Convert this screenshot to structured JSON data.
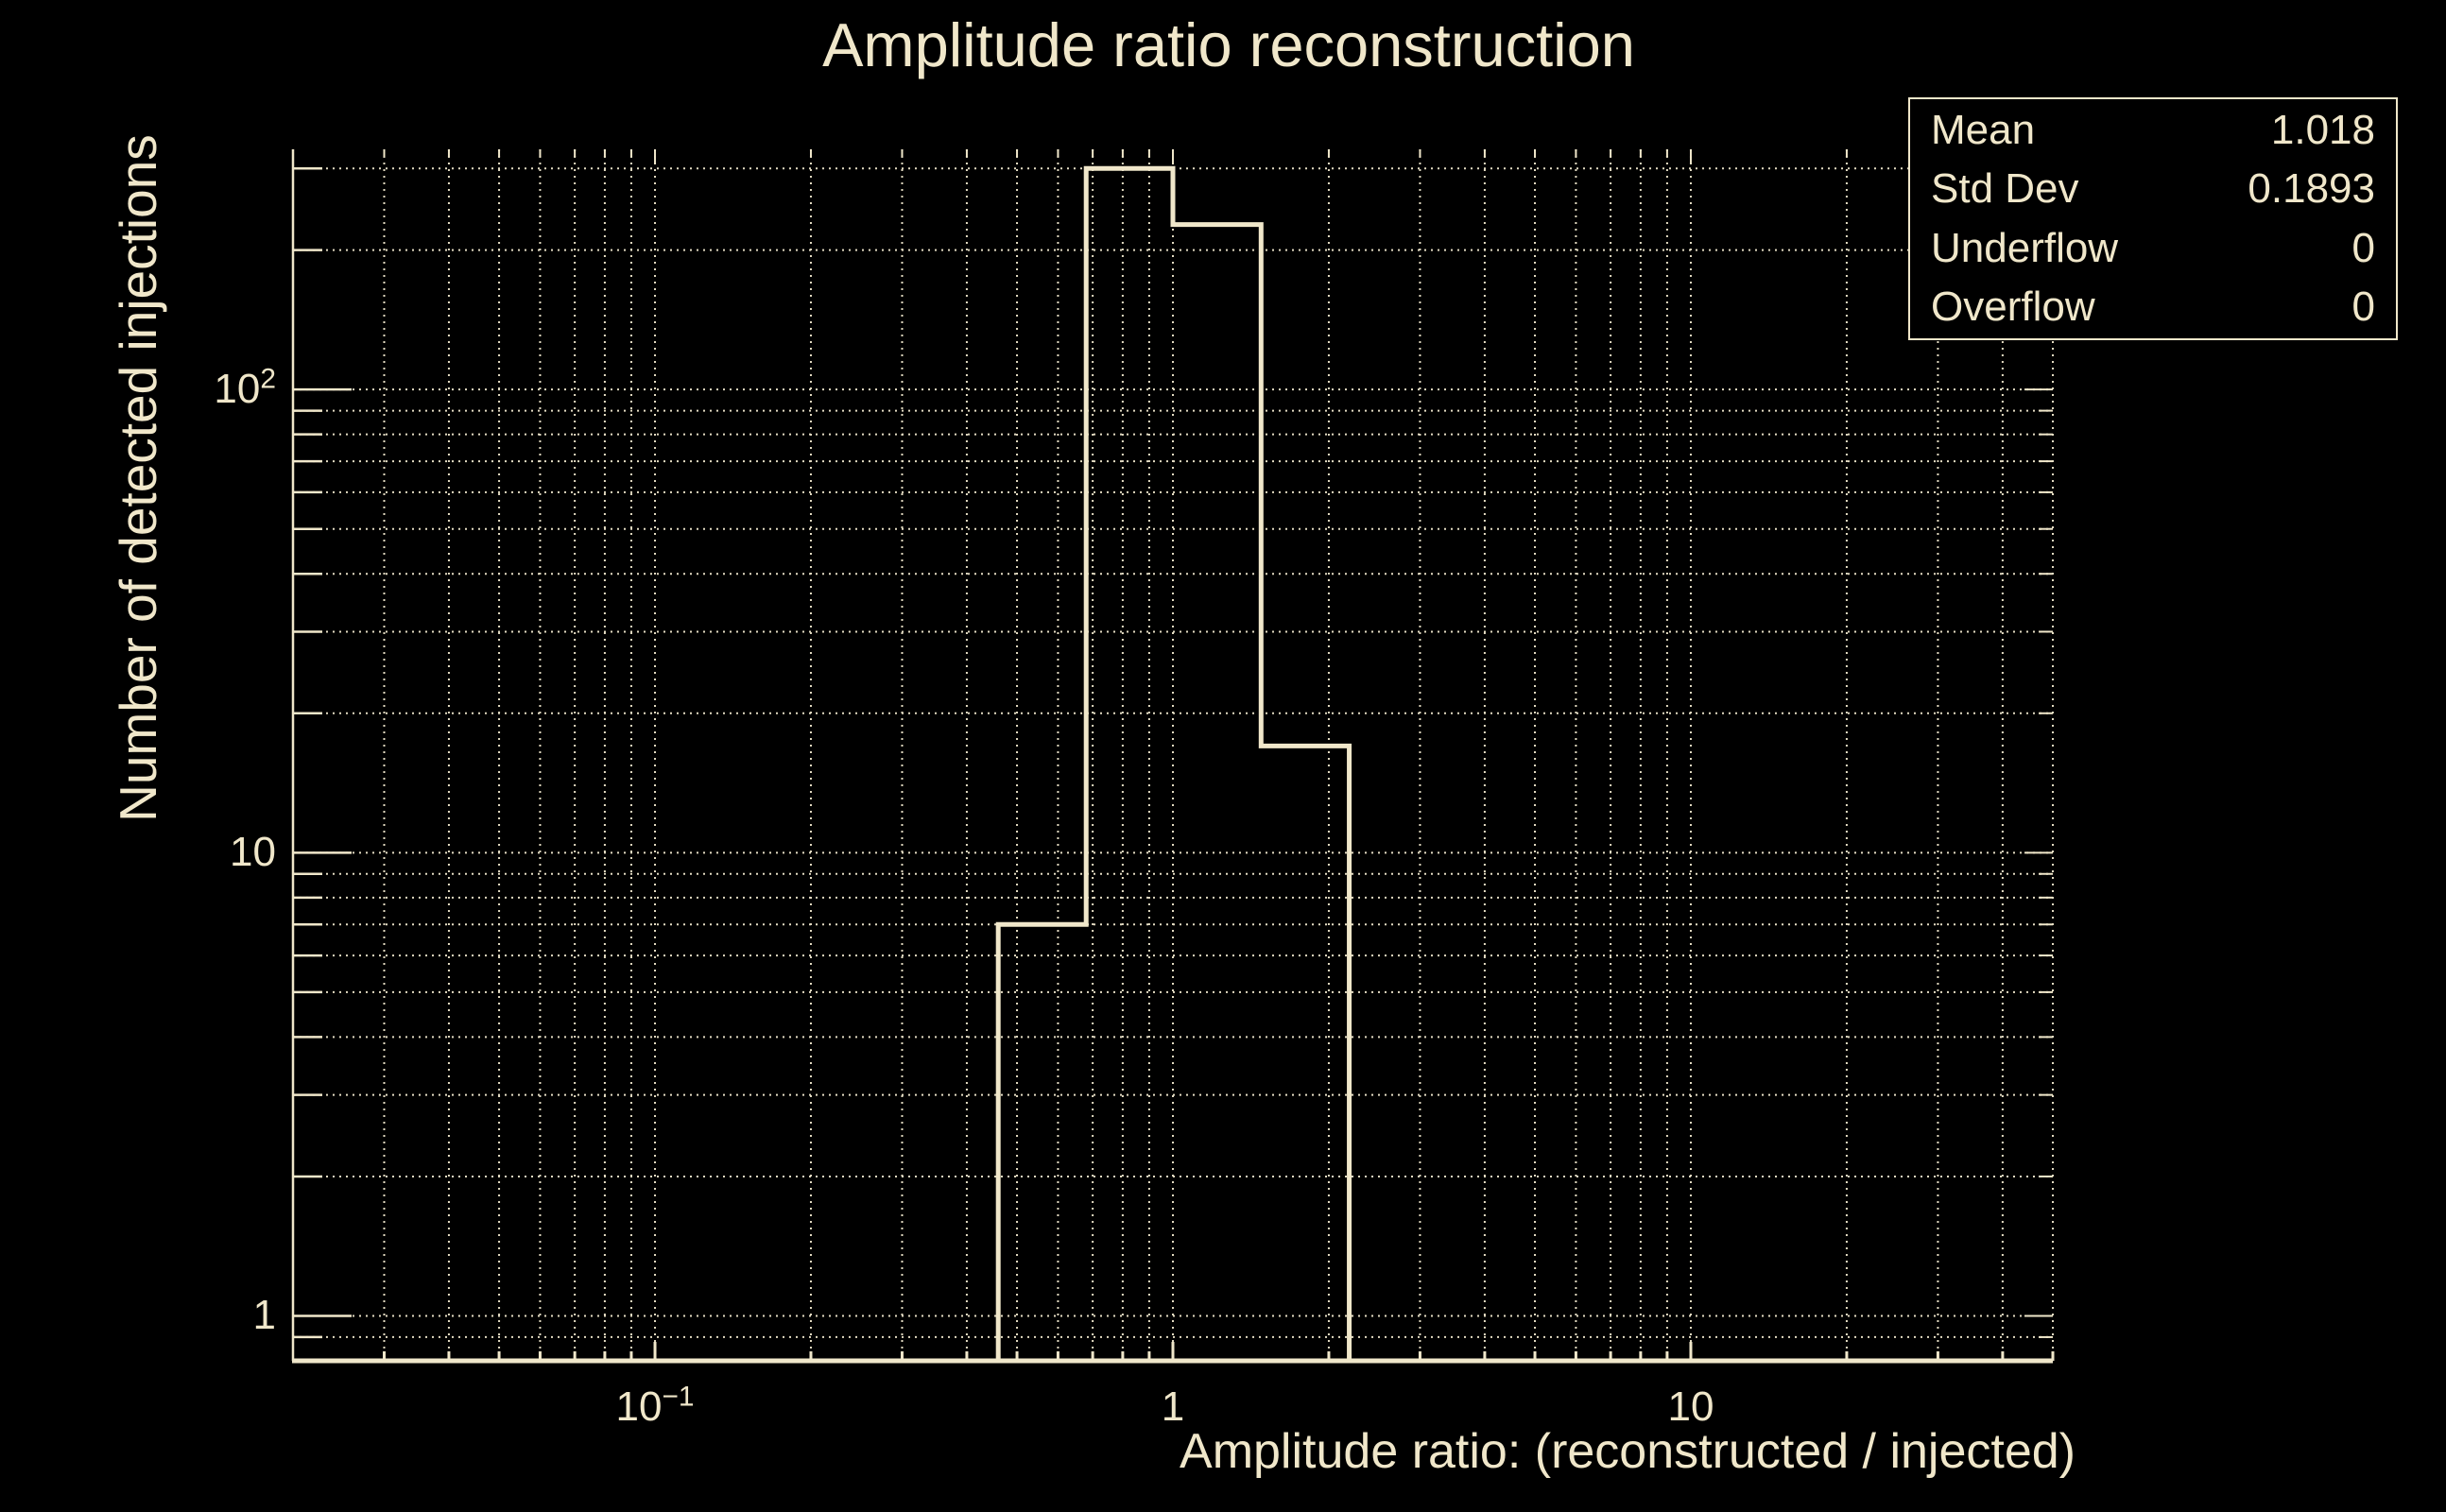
{
  "title": "Amplitude ratio reconstruction",
  "colors": {
    "background": "#000000",
    "foreground": "#F0E7CA",
    "grid": "#E3DBC2"
  },
  "chart_data": {
    "type": "bar",
    "subtype": "step-histogram-outline",
    "title": "Amplitude ratio reconstruction",
    "xlabel": "Amplitude ratio: (reconstructed / injected)",
    "ylabel": "Number of detected injections",
    "x_scale": "log",
    "y_scale": "log",
    "xlim": [
      0.02,
      50
    ],
    "ylim": [
      0.8,
      330
    ],
    "bin_edges": [
      0.46,
      0.68,
      1.0,
      1.48,
      2.19
    ],
    "counts": [
      7,
      300,
      227,
      17
    ],
    "x_ticks": [
      {
        "value": 0.1,
        "base": "10",
        "exp": "−1"
      },
      {
        "value": 1,
        "base": "1",
        "exp": ""
      },
      {
        "value": 10,
        "base": "10",
        "exp": ""
      }
    ],
    "y_ticks": [
      {
        "value": 1,
        "base": "1",
        "exp": ""
      },
      {
        "value": 10,
        "base": "10",
        "exp": ""
      },
      {
        "value": 100,
        "base": "10",
        "exp": "2"
      }
    ],
    "grid": "dotted, all decades and sub-decades",
    "legend_position": "none"
  },
  "stats_box": {
    "rows": [
      {
        "label": "Mean",
        "value": "1.018"
      },
      {
        "label": "Std Dev",
        "value": "0.1893"
      },
      {
        "label": "Underflow",
        "value": "0"
      },
      {
        "label": "Overflow",
        "value": "0"
      }
    ]
  }
}
